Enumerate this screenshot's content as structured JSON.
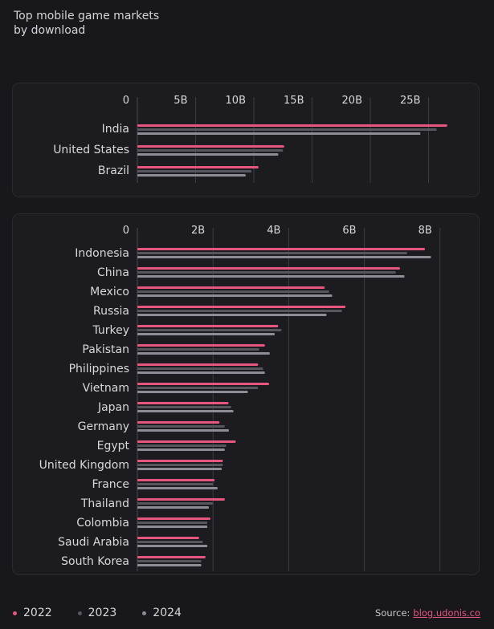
{
  "title": "Top mobile game markets by download",
  "title_lines": [
    "Top mobile game markets",
    "by download"
  ],
  "colors": {
    "2022": "#e8557f",
    "2023": "#55565e",
    "2024": "#8c8d95",
    "background": "#18171c",
    "panel": "#1c1b20"
  },
  "legend": [
    {
      "label": "2022",
      "color": "#e8557f"
    },
    {
      "label": "2023",
      "color": "#55565e"
    },
    {
      "label": "2024",
      "color": "#8c8d95"
    }
  ],
  "source": {
    "label": "Source:",
    "link_text": "blog.udonis.co"
  },
  "chart_data": [
    {
      "type": "bar",
      "orientation": "horizontal",
      "xlim": [
        0,
        28
      ],
      "ticks": [
        0,
        5,
        10,
        15,
        20,
        25
      ],
      "tick_labels": [
        "0",
        "5B",
        "10B",
        "15B",
        "20B",
        "25B"
      ],
      "unit": "billion downloads",
      "categories": [
        "India",
        "United States",
        "Brazil"
      ],
      "series": [
        {
          "name": "2022",
          "values": [
            26.6,
            12.6,
            10.4
          ]
        },
        {
          "name": "2023",
          "values": [
            25.7,
            12.5,
            9.8
          ]
        },
        {
          "name": "2024",
          "values": [
            24.3,
            12.1,
            9.3
          ]
        }
      ],
      "grid": true
    },
    {
      "type": "bar",
      "orientation": "horizontal",
      "xlim": [
        0,
        8.8
      ],
      "ticks": [
        0,
        2,
        4,
        6,
        8
      ],
      "tick_labels": [
        "0",
        "2B",
        "4B",
        "6B",
        "8B"
      ],
      "unit": "billion downloads",
      "categories": [
        "Indonesia",
        "China",
        "Mexico",
        "Russia",
        "Turkey",
        "Pakistan",
        "Philippines",
        "Vietnam",
        "Japan",
        "Germany",
        "Egypt",
        "United Kingdom",
        "France",
        "Thailand",
        "Colombia",
        "Saudi Arabia",
        "South Korea"
      ],
      "series": [
        {
          "name": "2022",
          "values": [
            7.6,
            6.94,
            4.95,
            5.5,
            3.72,
            3.37,
            3.19,
            3.48,
            2.41,
            2.17,
            2.6,
            2.26,
            2.04,
            2.31,
            1.93,
            1.63,
            1.8
          ]
        },
        {
          "name": "2023",
          "values": [
            7.13,
            6.83,
            5.07,
            5.41,
            3.81,
            3.22,
            3.32,
            3.19,
            2.48,
            2.31,
            2.35,
            2.26,
            2.0,
            2.0,
            1.85,
            1.73,
            1.69
          ]
        },
        {
          "name": "2024",
          "values": [
            7.76,
            7.06,
            5.15,
            5.0,
            3.63,
            3.5,
            3.37,
            2.92,
            2.54,
            2.42,
            2.31,
            2.23,
            2.12,
            1.89,
            1.85,
            1.85,
            1.69
          ]
        }
      ],
      "grid": true
    }
  ]
}
